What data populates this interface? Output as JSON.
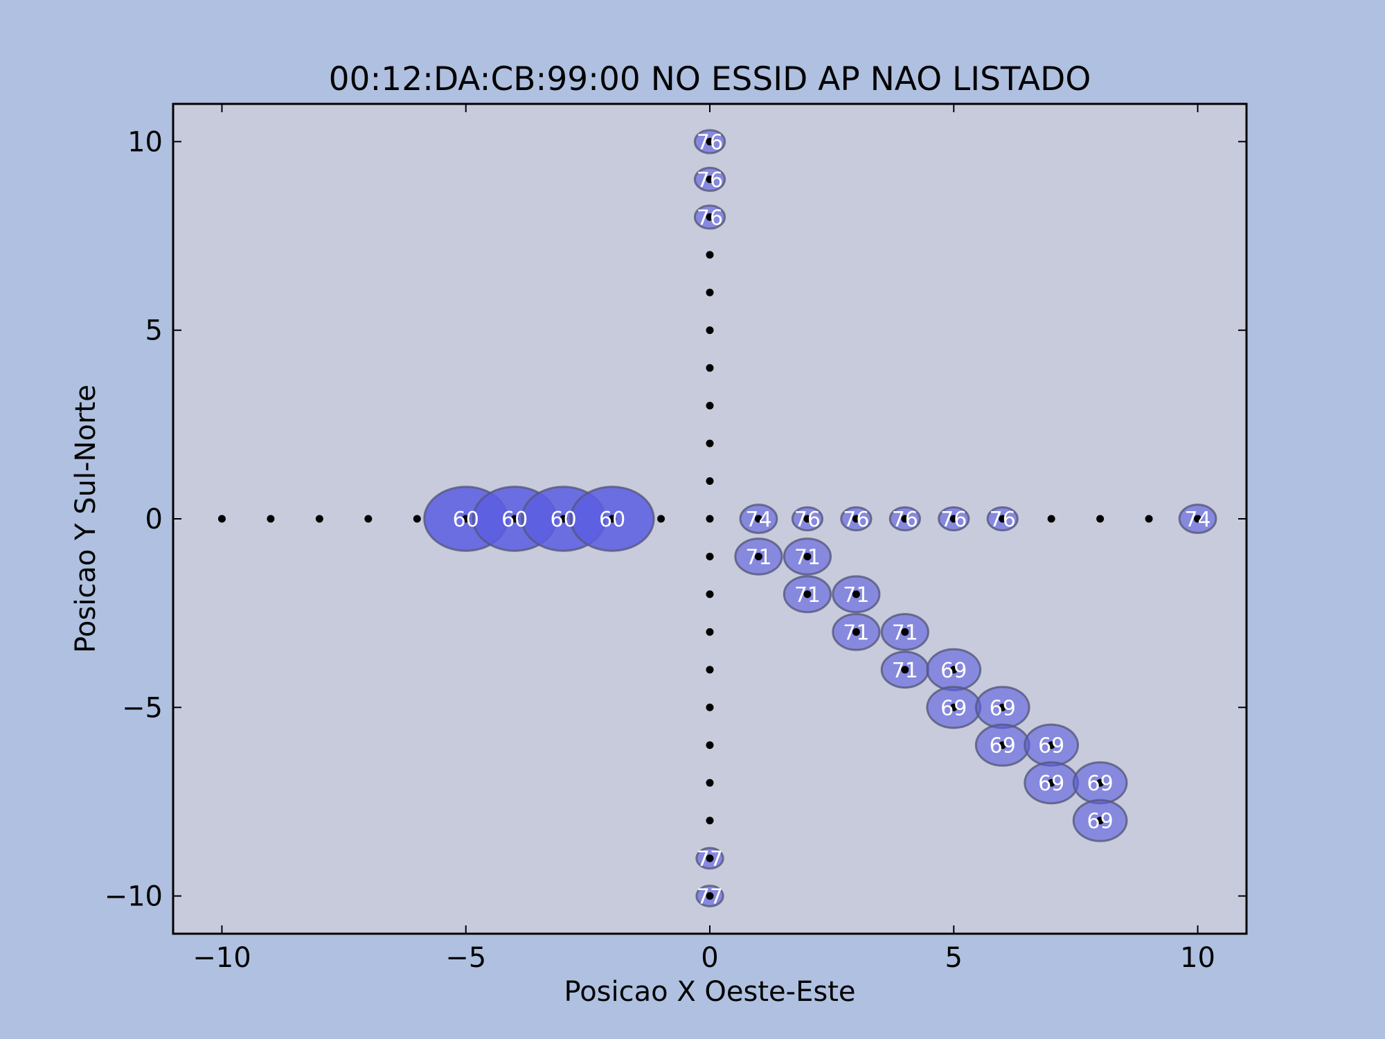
{
  "chart_data": {
    "type": "scatter",
    "title": "00:12:DA:CB:99:00 NO ESSID AP NAO LISTADO",
    "xlabel": "Posicao X Oeste-Este",
    "ylabel": "Posicao Y Sul-Norte",
    "xlim": [
      -11,
      11
    ],
    "ylim": [
      -11,
      11
    ],
    "xticks": [
      -10,
      -5,
      0,
      5,
      10
    ],
    "yticks": [
      -10,
      -5,
      0,
      5,
      10
    ],
    "xtick_labels": [
      "−10",
      "−5",
      "0",
      "5",
      "10"
    ],
    "ytick_labels": [
      "−10",
      "−5",
      "0",
      "5",
      "10"
    ],
    "grid": false,
    "colors": {
      "figure_background": "#afc0e0",
      "plot_background": "#c8cbdb",
      "bubble_fill": "#5a5ee0",
      "bubble_edge": "#55587a",
      "point": "#000000",
      "bubble_text": "#ffffff"
    },
    "measurement_points": [
      [
        -10,
        0
      ],
      [
        -9,
        0
      ],
      [
        -8,
        0
      ],
      [
        -7,
        0
      ],
      [
        -6,
        0
      ],
      [
        -5,
        0
      ],
      [
        -4,
        0
      ],
      [
        -3,
        0
      ],
      [
        -2,
        0
      ],
      [
        -1,
        0
      ],
      [
        0,
        0
      ],
      [
        1,
        0
      ],
      [
        2,
        0
      ],
      [
        3,
        0
      ],
      [
        4,
        0
      ],
      [
        5,
        0
      ],
      [
        6,
        0
      ],
      [
        7,
        0
      ],
      [
        8,
        0
      ],
      [
        9,
        0
      ],
      [
        10,
        0
      ],
      [
        0,
        10
      ],
      [
        0,
        9
      ],
      [
        0,
        8
      ],
      [
        0,
        7
      ],
      [
        0,
        6
      ],
      [
        0,
        5
      ],
      [
        0,
        4
      ],
      [
        0,
        3
      ],
      [
        0,
        2
      ],
      [
        0,
        1
      ],
      [
        0,
        -1
      ],
      [
        0,
        -2
      ],
      [
        0,
        -3
      ],
      [
        0,
        -4
      ],
      [
        0,
        -5
      ],
      [
        0,
        -6
      ],
      [
        0,
        -7
      ],
      [
        0,
        -8
      ],
      [
        0,
        -9
      ],
      [
        0,
        -10
      ],
      [
        1,
        -1
      ],
      [
        2,
        -1
      ],
      [
        2,
        -2
      ],
      [
        3,
        -2
      ],
      [
        3,
        -3
      ],
      [
        4,
        -3
      ],
      [
        4,
        -4
      ],
      [
        5,
        -4
      ],
      [
        5,
        -5
      ],
      [
        6,
        -5
      ],
      [
        6,
        -6
      ],
      [
        7,
        -6
      ],
      [
        7,
        -7
      ],
      [
        8,
        -7
      ],
      [
        8,
        -8
      ]
    ],
    "readings": [
      {
        "x": -5,
        "y": 0,
        "value": 60
      },
      {
        "x": -4,
        "y": 0,
        "value": 60
      },
      {
        "x": -3,
        "y": 0,
        "value": 60
      },
      {
        "x": -2,
        "y": 0,
        "value": 60
      },
      {
        "x": 1,
        "y": 0,
        "value": 74
      },
      {
        "x": 2,
        "y": 0,
        "value": 76
      },
      {
        "x": 3,
        "y": 0,
        "value": 76
      },
      {
        "x": 4,
        "y": 0,
        "value": 76
      },
      {
        "x": 5,
        "y": 0,
        "value": 76
      },
      {
        "x": 6,
        "y": 0,
        "value": 76
      },
      {
        "x": 10,
        "y": 0,
        "value": 74
      },
      {
        "x": 0,
        "y": 10,
        "value": 76
      },
      {
        "x": 0,
        "y": 9,
        "value": 76
      },
      {
        "x": 0,
        "y": 8,
        "value": 76
      },
      {
        "x": 0,
        "y": -9,
        "value": 77
      },
      {
        "x": 0,
        "y": -10,
        "value": 77
      },
      {
        "x": 1,
        "y": -1,
        "value": 71
      },
      {
        "x": 2,
        "y": -1,
        "value": 71
      },
      {
        "x": 2,
        "y": -2,
        "value": 71
      },
      {
        "x": 3,
        "y": -2,
        "value": 71
      },
      {
        "x": 3,
        "y": -3,
        "value": 71
      },
      {
        "x": 4,
        "y": -3,
        "value": 71
      },
      {
        "x": 4,
        "y": -4,
        "value": 71
      },
      {
        "x": 5,
        "y": -4,
        "value": 69
      },
      {
        "x": 5,
        "y": -5,
        "value": 69
      },
      {
        "x": 6,
        "y": -5,
        "value": 69
      },
      {
        "x": 6,
        "y": -6,
        "value": 69
      },
      {
        "x": 7,
        "y": -6,
        "value": 69
      },
      {
        "x": 7,
        "y": -7,
        "value": 69
      },
      {
        "x": 8,
        "y": -7,
        "value": 69
      },
      {
        "x": 8,
        "y": -8,
        "value": 69
      }
    ]
  }
}
